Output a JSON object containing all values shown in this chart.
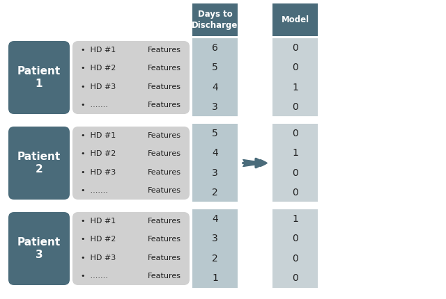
{
  "patients": [
    "Patient\n1",
    "Patient\n2",
    "Patient\n3"
  ],
  "hd_lines": [
    [
      "•  HD #1",
      "•  HD #2",
      "•  HD #3",
      "•  ......."
    ],
    [
      "•  HD #1",
      "•  HD #2",
      "•  HD #3",
      "•  ......."
    ],
    [
      "•  HD #1",
      "•  HD #2",
      "•  HD #3",
      "•  ......."
    ]
  ],
  "days_to_discharge": [
    [
      "6",
      "5",
      "4",
      "3"
    ],
    [
      "5",
      "4",
      "3",
      "2"
    ],
    [
      "4",
      "3",
      "2",
      "1"
    ]
  ],
  "model_values": [
    [
      "0",
      "0",
      "1",
      "0"
    ],
    [
      "0",
      "1",
      "0",
      "0"
    ],
    [
      "1",
      "0",
      "0",
      "0"
    ]
  ],
  "header_days": "Days to\nDischarge",
  "header_model": "Model",
  "dark_box_color": "#4a6b7a",
  "feature_box_color": "#d0d0d0",
  "days_col_color": "#b8c8ce",
  "model_col_color": "#c8d2d6",
  "header_bg_color": "#4a6b7a",
  "header_text_color": "#ffffff",
  "dark_text_color": "#ffffff",
  "body_text_color": "#222222",
  "arrow_color": "#4a6b7a",
  "background_color": "#ffffff",
  "fig_w": 6.4,
  "fig_h": 4.3,
  "dpi": 100
}
